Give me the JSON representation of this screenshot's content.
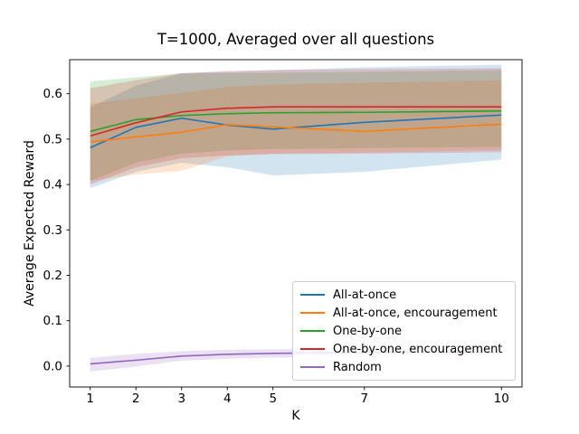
{
  "chart_data": {
    "type": "line",
    "title": "T=1000, Averaged over all questions",
    "xlabel": "K",
    "ylabel": "Average Expected Reward",
    "x": [
      1,
      2,
      3,
      4,
      5,
      7,
      10
    ],
    "xticks": [
      "1",
      "2",
      "3",
      "4",
      "5",
      "7",
      "10"
    ],
    "yticks": [
      "0.0",
      "0.1",
      "0.2",
      "0.3",
      "0.4",
      "0.5",
      "0.6"
    ],
    "xlim": [
      0.55,
      10.45
    ],
    "ylim": [
      -0.046,
      0.675
    ],
    "grid": false,
    "legend_position": "lower right",
    "band_alpha": 0.2,
    "series": [
      {
        "name": "All-at-once",
        "color": "#1f77b4",
        "values": [
          0.481,
          0.526,
          0.546,
          0.531,
          0.522,
          0.537,
          0.553
        ],
        "lower": [
          0.392,
          0.428,
          0.448,
          0.438,
          0.42,
          0.428,
          0.455
        ],
        "upper": [
          0.57,
          0.618,
          0.645,
          0.648,
          0.652,
          0.658,
          0.664
        ]
      },
      {
        "name": "All-at-once, encouragement",
        "color": "#ff7f0e",
        "values": [
          0.494,
          0.505,
          0.515,
          0.532,
          0.527,
          0.517,
          0.533
        ],
        "lower": [
          0.408,
          0.422,
          0.43,
          0.462,
          0.468,
          0.47,
          0.476
        ],
        "upper": [
          0.578,
          0.59,
          0.602,
          0.615,
          0.62,
          0.624,
          0.63
        ]
      },
      {
        "name": "One-by-one",
        "color": "#2ca02c",
        "values": [
          0.517,
          0.543,
          0.552,
          0.556,
          0.558,
          0.559,
          0.562
        ],
        "lower": [
          0.408,
          0.448,
          0.468,
          0.475,
          0.478,
          0.48,
          0.483
        ],
        "upper": [
          0.627,
          0.636,
          0.645,
          0.646,
          0.646,
          0.648,
          0.652
        ]
      },
      {
        "name": "One-by-one, encouragement",
        "color": "#d62728",
        "values": [
          0.507,
          0.536,
          0.56,
          0.568,
          0.571,
          0.571,
          0.571
        ],
        "lower": [
          0.4,
          0.438,
          0.458,
          0.464,
          0.467,
          0.468,
          0.471
        ],
        "upper": [
          0.612,
          0.63,
          0.645,
          0.65,
          0.652,
          0.654,
          0.656
        ]
      },
      {
        "name": "Random",
        "color": "#9467bd",
        "values": [
          0.005,
          0.013,
          0.022,
          0.026,
          0.028,
          0.03,
          0.03
        ],
        "lower": [
          -0.012,
          -0.001,
          0.012,
          0.016,
          0.019,
          0.02,
          0.02
        ],
        "upper": [
          0.018,
          0.027,
          0.033,
          0.036,
          0.037,
          0.039,
          0.039
        ]
      }
    ]
  }
}
